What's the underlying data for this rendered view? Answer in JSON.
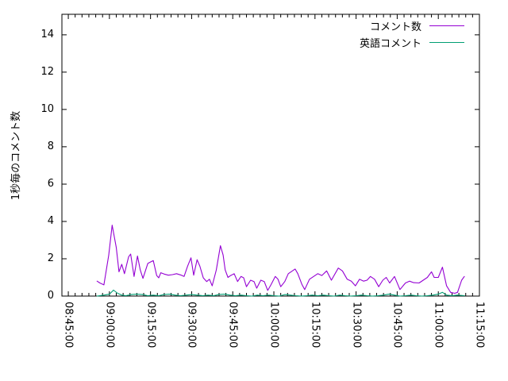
{
  "colors": {
    "background": "#ffffff",
    "axis": "#000000",
    "series_comments": "#9400d3",
    "series_english": "#009e73"
  },
  "chart_data": {
    "type": "line",
    "title": "",
    "xlabel": "",
    "ylabel": "1秒毎のコメント数",
    "grid": false,
    "legend_position": "top-right-inside",
    "ylim": [
      0,
      15.1
    ],
    "y_major_ticks": [
      0,
      2,
      4,
      6,
      8,
      10,
      12,
      14
    ],
    "x_start": "08:42:40",
    "x_end": "11:15:00",
    "x_major_ticks": [
      "08:45:00",
      "09:00:00",
      "09:15:00",
      "09:30:00",
      "09:45:00",
      "10:00:00",
      "10:15:00",
      "10:30:00",
      "10:45:00",
      "11:00:00",
      "11:15:00"
    ],
    "x_minor_interval_seconds": 150,
    "series": [
      {
        "name": "コメント数",
        "key": "comments",
        "color": "#9400d3",
        "points": [
          [
            "08:55:30",
            0.8
          ],
          [
            "08:56:30",
            0.7
          ],
          [
            "08:58:00",
            0.6
          ],
          [
            "08:59:45",
            2.2
          ],
          [
            "09:01:00",
            3.8
          ],
          [
            "09:02:30",
            2.6
          ],
          [
            "09:03:30",
            1.3
          ],
          [
            "09:04:30",
            1.7
          ],
          [
            "09:05:30",
            1.2
          ],
          [
            "09:07:00",
            2.1
          ],
          [
            "09:07:45",
            2.25
          ],
          [
            "09:09:00",
            1.05
          ],
          [
            "09:10:15",
            2.15
          ],
          [
            "09:11:15",
            1.4
          ],
          [
            "09:12:15",
            0.95
          ],
          [
            "09:14:00",
            1.75
          ],
          [
            "09:16:00",
            1.9
          ],
          [
            "09:17:15",
            1.1
          ],
          [
            "09:18:00",
            0.98
          ],
          [
            "09:18:45",
            1.25
          ],
          [
            "09:20:00",
            1.18
          ],
          [
            "09:21:30",
            1.12
          ],
          [
            "09:23:00",
            1.15
          ],
          [
            "09:24:30",
            1.2
          ],
          [
            "09:26:15",
            1.12
          ],
          [
            "09:27:15",
            1.05
          ],
          [
            "09:28:30",
            1.6
          ],
          [
            "09:29:45",
            2.05
          ],
          [
            "09:30:45",
            1.12
          ],
          [
            "09:32:00",
            1.95
          ],
          [
            "09:33:00",
            1.6
          ],
          [
            "09:34:15",
            0.98
          ],
          [
            "09:35:30",
            0.78
          ],
          [
            "09:36:30",
            0.9
          ],
          [
            "09:37:30",
            0.55
          ],
          [
            "09:39:00",
            1.4
          ],
          [
            "09:40:30",
            2.7
          ],
          [
            "09:41:30",
            2.2
          ],
          [
            "09:42:15",
            1.4
          ],
          [
            "09:43:15",
            1.0
          ],
          [
            "09:44:15",
            1.1
          ],
          [
            "09:45:30",
            1.2
          ],
          [
            "09:46:45",
            0.78
          ],
          [
            "09:48:00",
            1.05
          ],
          [
            "09:49:00",
            0.98
          ],
          [
            "09:50:00",
            0.5
          ],
          [
            "09:51:30",
            0.85
          ],
          [
            "09:52:45",
            0.78
          ],
          [
            "09:53:45",
            0.42
          ],
          [
            "09:55:15",
            0.85
          ],
          [
            "09:56:30",
            0.78
          ],
          [
            "09:57:45",
            0.3
          ],
          [
            "09:59:00",
            0.62
          ],
          [
            "10:00:30",
            1.05
          ],
          [
            "10:01:30",
            0.9
          ],
          [
            "10:02:30",
            0.5
          ],
          [
            "10:04:00",
            0.78
          ],
          [
            "10:05:15",
            1.2
          ],
          [
            "10:07:45",
            1.45
          ],
          [
            "10:08:45",
            1.2
          ],
          [
            "10:10:15",
            0.62
          ],
          [
            "10:11:15",
            0.35
          ],
          [
            "10:13:00",
            0.9
          ],
          [
            "10:14:30",
            1.05
          ],
          [
            "10:16:00",
            1.2
          ],
          [
            "10:17:30",
            1.1
          ],
          [
            "10:19:15",
            1.35
          ],
          [
            "10:21:00",
            0.85
          ],
          [
            "10:23:30",
            1.5
          ],
          [
            "10:25:00",
            1.35
          ],
          [
            "10:26:45",
            0.9
          ],
          [
            "10:28:15",
            0.8
          ],
          [
            "10:29:45",
            0.55
          ],
          [
            "10:31:15",
            0.9
          ],
          [
            "10:32:45",
            0.8
          ],
          [
            "10:34:00",
            0.85
          ],
          [
            "10:35:15",
            1.05
          ],
          [
            "10:36:45",
            0.9
          ],
          [
            "10:38:15",
            0.5
          ],
          [
            "10:39:45",
            0.85
          ],
          [
            "10:41:00",
            1.0
          ],
          [
            "10:42:15",
            0.7
          ],
          [
            "10:44:00",
            1.05
          ],
          [
            "10:46:00",
            0.35
          ],
          [
            "10:48:00",
            0.7
          ],
          [
            "10:49:30",
            0.8
          ],
          [
            "10:51:00",
            0.72
          ],
          [
            "10:53:00",
            0.7
          ],
          [
            "10:54:30",
            0.85
          ],
          [
            "10:56:00",
            1.0
          ],
          [
            "10:57:30",
            1.3
          ],
          [
            "10:58:30",
            1.0
          ],
          [
            "11:00:00",
            1.0
          ],
          [
            "11:01:30",
            1.55
          ],
          [
            "11:03:00",
            0.55
          ],
          [
            "11:04:30",
            0.2
          ],
          [
            "11:06:00",
            0.15
          ],
          [
            "11:07:00",
            0.2
          ],
          [
            "11:08:30",
            0.85
          ],
          [
            "11:09:30",
            1.05
          ]
        ]
      },
      {
        "name": "英語コメント",
        "key": "english-comments",
        "color": "#009e73",
        "points": [
          [
            "08:55:30",
            0.0
          ],
          [
            "08:58:00",
            0.05
          ],
          [
            "09:00:00",
            0.1
          ],
          [
            "09:01:30",
            0.32
          ],
          [
            "09:03:00",
            0.15
          ],
          [
            "09:04:30",
            0.05
          ],
          [
            "09:06:00",
            0.02
          ],
          [
            "09:08:00",
            0.08
          ],
          [
            "09:10:00",
            0.1
          ],
          [
            "09:12:00",
            0.08
          ],
          [
            "09:14:00",
            0.02
          ],
          [
            "09:16:00",
            0.05
          ],
          [
            "09:18:00",
            0.02
          ],
          [
            "09:20:00",
            0.08
          ],
          [
            "09:22:00",
            0.1
          ],
          [
            "09:24:00",
            0.05
          ],
          [
            "09:26:00",
            0.02
          ],
          [
            "09:28:00",
            0.05
          ],
          [
            "09:30:00",
            0.08
          ],
          [
            "09:32:00",
            0.05
          ],
          [
            "09:34:00",
            0.02
          ],
          [
            "09:36:00",
            0.05
          ],
          [
            "09:38:00",
            0.02
          ],
          [
            "09:40:00",
            0.08
          ],
          [
            "09:42:00",
            0.1
          ],
          [
            "09:44:00",
            0.05
          ],
          [
            "09:46:00",
            0.02
          ],
          [
            "09:48:00",
            0.05
          ],
          [
            "09:50:00",
            0.02
          ],
          [
            "09:52:00",
            0.0
          ],
          [
            "09:54:00",
            0.05
          ],
          [
            "09:56:00",
            0.02
          ],
          [
            "09:58:00",
            0.05
          ],
          [
            "10:00:00",
            0.02
          ],
          [
            "10:02:00",
            0.0
          ],
          [
            "10:04:00",
            0.08
          ],
          [
            "10:06:00",
            0.05
          ],
          [
            "10:08:00",
            0.02
          ],
          [
            "10:10:00",
            0.0
          ],
          [
            "10:12:00",
            0.02
          ],
          [
            "10:14:00",
            0.05
          ],
          [
            "10:16:00",
            0.02
          ],
          [
            "10:18:00",
            0.05
          ],
          [
            "10:20:00",
            0.02
          ],
          [
            "10:22:00",
            0.0
          ],
          [
            "10:24:00",
            0.05
          ],
          [
            "10:26:00",
            0.02
          ],
          [
            "10:28:00",
            0.0
          ],
          [
            "10:30:00",
            0.02
          ],
          [
            "10:32:00",
            0.05
          ],
          [
            "10:34:00",
            0.02
          ],
          [
            "10:36:00",
            0.0
          ],
          [
            "10:38:00",
            0.02
          ],
          [
            "10:40:00",
            0.05
          ],
          [
            "10:42:00",
            0.1
          ],
          [
            "10:44:00",
            0.05
          ],
          [
            "10:46:00",
            0.0
          ],
          [
            "10:48:00",
            0.02
          ],
          [
            "10:50:00",
            0.05
          ],
          [
            "10:52:00",
            0.02
          ],
          [
            "10:54:00",
            0.0
          ],
          [
            "10:56:00",
            0.02
          ],
          [
            "10:58:00",
            0.05
          ],
          [
            "11:00:00",
            0.1
          ],
          [
            "11:01:30",
            0.2
          ],
          [
            "11:03:00",
            0.05
          ],
          [
            "11:05:00",
            0.02
          ],
          [
            "11:07:00",
            0.05
          ],
          [
            "11:09:30",
            0.02
          ]
        ]
      }
    ]
  }
}
